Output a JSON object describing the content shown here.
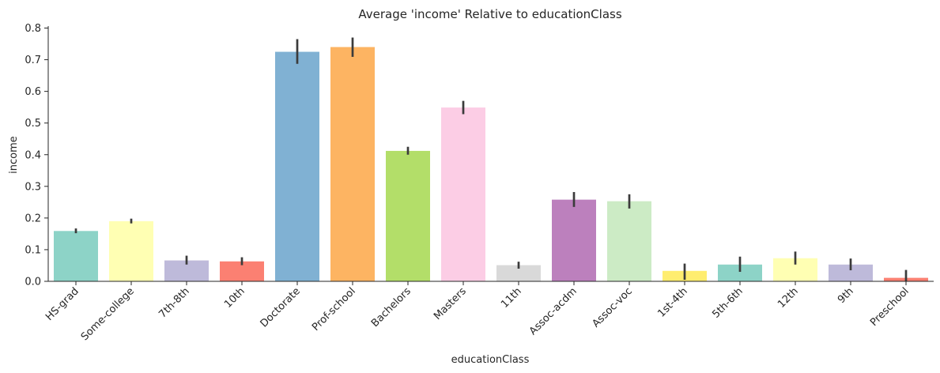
{
  "chart_data": {
    "type": "bar",
    "title": "Average 'income' Relative to educationClass",
    "xlabel": "educationClass",
    "ylabel": "income",
    "ylim": [
      0,
      0.8
    ],
    "yticks": [
      "0.0",
      "0.1",
      "0.2",
      "0.3",
      "0.4",
      "0.5",
      "0.6",
      "0.7",
      "0.8"
    ],
    "grid": false,
    "categories": [
      "HS-grad",
      "Some-college",
      "7th-8th",
      "10th",
      "Doctorate",
      "Prof-school",
      "Bachelors",
      "Masters",
      "11th",
      "Assoc-acdm",
      "Assoc-voc",
      "1st-4th",
      "5th-6th",
      "12th",
      "9th",
      "Preschool"
    ],
    "values": [
      0.159,
      0.19,
      0.066,
      0.063,
      0.725,
      0.74,
      0.412,
      0.549,
      0.051,
      0.258,
      0.253,
      0.033,
      0.053,
      0.073,
      0.053,
      0.011
    ],
    "error_low": [
      0.152,
      0.183,
      0.053,
      0.051,
      0.687,
      0.709,
      0.4,
      0.528,
      0.04,
      0.235,
      0.23,
      0.005,
      0.03,
      0.053,
      0.035,
      0.0
    ],
    "error_high": [
      0.167,
      0.198,
      0.081,
      0.076,
      0.765,
      0.77,
      0.425,
      0.57,
      0.062,
      0.282,
      0.275,
      0.056,
      0.078,
      0.094,
      0.072,
      0.036
    ],
    "colors": [
      "#8dd3c7",
      "#ffffb3",
      "#bebada",
      "#fb8072",
      "#80b1d3",
      "#fdb462",
      "#b3de69",
      "#fccde5",
      "#d9d9d9",
      "#bc80bd",
      "#ccebc5",
      "#ffed6f",
      "#8dd3c7",
      "#ffffb3",
      "#bebada",
      "#fb8072"
    ],
    "errorbar_color": "#3b3b3b"
  }
}
